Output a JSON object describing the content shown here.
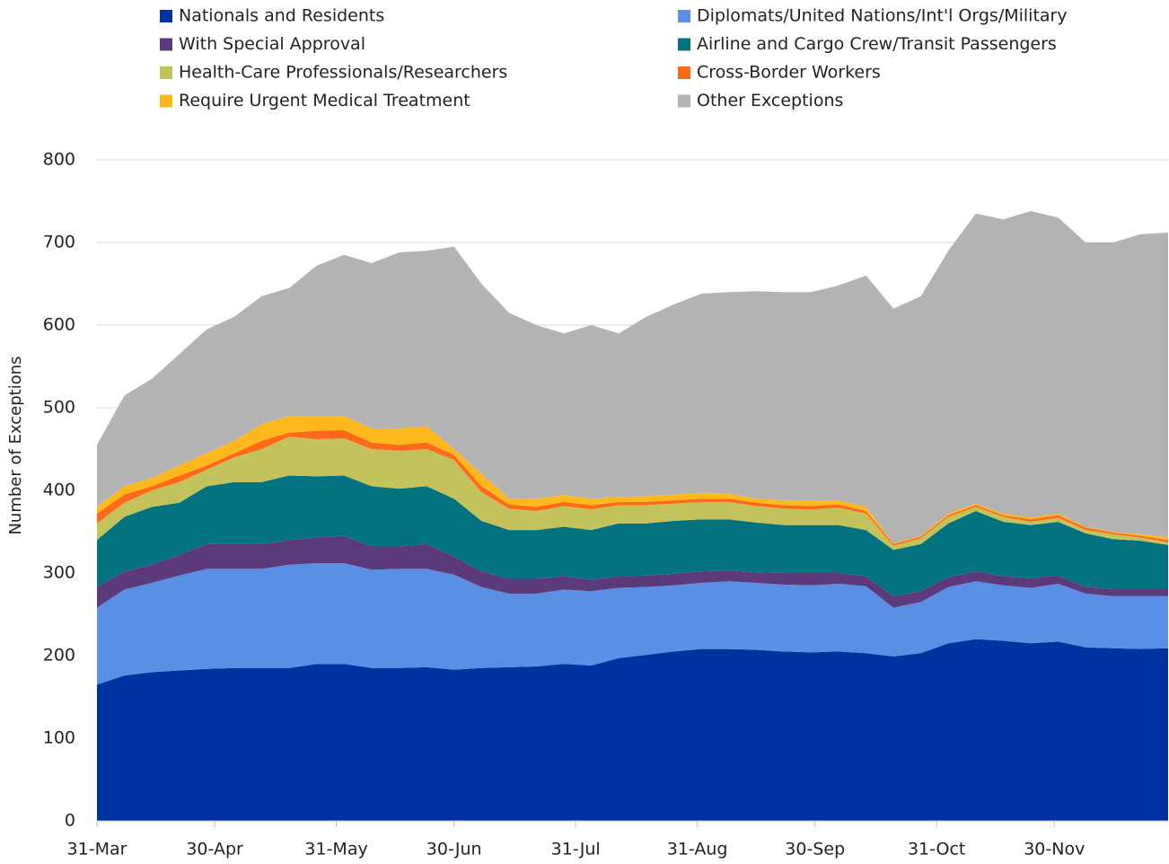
{
  "chart_data": {
    "type": "stacked_area",
    "y_label": "Number of Exceptions",
    "x": [
      0,
      7,
      14,
      21,
      28,
      35,
      42,
      49,
      56,
      63,
      70,
      77,
      84,
      91,
      98,
      105,
      112,
      119,
      126,
      133,
      140,
      147,
      154,
      161,
      168,
      175,
      182,
      189,
      196,
      203,
      210,
      217,
      224,
      231,
      238,
      245,
      252,
      259,
      266,
      273
    ],
    "xlim": [
      0,
      273
    ],
    "xticks": [
      {
        "value": 0,
        "label": "31-Mar"
      },
      {
        "value": 30,
        "label": "30-Apr"
      },
      {
        "value": 61,
        "label": "31-May"
      },
      {
        "value": 91,
        "label": "30-Jun"
      },
      {
        "value": 122,
        "label": "31-Jul"
      },
      {
        "value": 153,
        "label": "31-Aug"
      },
      {
        "value": 183,
        "label": "30-Sep"
      },
      {
        "value": 214,
        "label": "31-Oct"
      },
      {
        "value": 244,
        "label": "30-Nov"
      }
    ],
    "ylim": [
      0,
      800
    ],
    "yticks": [
      0,
      100,
      200,
      300,
      400,
      500,
      600,
      700,
      800
    ],
    "grid": true,
    "legend": "top",
    "series": [
      {
        "name": "Nationals and Residents",
        "color": "#0033a0",
        "values": [
          165,
          176,
          180,
          182,
          184,
          185,
          185,
          185,
          190,
          190,
          185,
          185,
          186,
          183,
          185,
          186,
          187,
          190,
          188,
          197,
          201,
          205,
          208,
          208,
          207,
          205,
          204,
          205,
          203,
          199,
          203,
          215,
          220,
          218,
          215,
          217,
          210,
          209,
          208,
          209
        ]
      },
      {
        "name": "Diplomats/United Nations/Int'l Orgs/Military",
        "color": "#5b8fe6",
        "values": [
          93,
          104,
          108,
          115,
          121,
          120,
          120,
          125,
          122,
          122,
          119,
          120,
          119,
          115,
          98,
          89,
          88,
          90,
          90,
          85,
          82,
          80,
          80,
          82,
          81,
          81,
          81,
          82,
          81,
          59,
          62,
          68,
          70,
          67,
          67,
          70,
          65,
          63,
          64,
          63
        ]
      },
      {
        "name": "With Special Approval",
        "color": "#5c3a7a",
        "values": [
          25,
          22,
          22,
          25,
          30,
          30,
          30,
          30,
          31,
          33,
          28,
          27,
          30,
          22,
          19,
          18,
          18,
          16,
          14,
          14,
          14,
          14,
          14,
          13,
          13,
          14,
          15,
          13,
          12,
          14,
          13,
          12,
          12,
          11,
          12,
          10,
          8,
          9,
          9,
          9
        ]
      },
      {
        "name": "Airline and Cargo Crew/Transit Passengers",
        "color": "#00737f",
        "values": [
          57,
          66,
          70,
          63,
          70,
          75,
          75,
          78,
          74,
          73,
          73,
          70,
          70,
          70,
          61,
          59,
          59,
          60,
          60,
          64,
          63,
          64,
          63,
          62,
          60,
          58,
          58,
          58,
          56,
          56,
          57,
          65,
          73,
          66,
          64,
          65,
          65,
          60,
          58,
          53
        ]
      },
      {
        "name": "Health-Care Professionals/Researchers",
        "color": "#c4c25a",
        "values": [
          20,
          17,
          20,
          25,
          20,
          30,
          40,
          47,
          45,
          45,
          45,
          46,
          45,
          47,
          35,
          26,
          23,
          25,
          25,
          22,
          22,
          21,
          21,
          21,
          20,
          20,
          19,
          21,
          20,
          5,
          7,
          8,
          5,
          6,
          4,
          5,
          4,
          6,
          4,
          3
        ]
      },
      {
        "name": "Cross-Border Workers",
        "color": "#ff6a1a",
        "values": [
          12,
          10,
          5,
          8,
          5,
          5,
          10,
          5,
          10,
          10,
          8,
          7,
          8,
          6,
          7,
          5,
          5,
          5,
          5,
          4,
          4,
          4,
          4,
          4,
          4,
          4,
          4,
          4,
          3,
          2,
          2,
          2,
          2,
          2,
          3,
          3,
          3,
          2,
          2,
          3
        ]
      },
      {
        "name": "Require Urgent Medical Treatment",
        "color": "#ffb81c",
        "values": [
          8,
          10,
          10,
          12,
          15,
          15,
          20,
          20,
          18,
          17,
          17,
          20,
          20,
          7,
          15,
          7,
          10,
          8,
          8,
          6,
          7,
          7,
          7,
          6,
          5,
          6,
          6,
          5,
          5,
          1,
          1,
          2,
          2,
          2,
          2,
          2,
          1,
          1,
          2,
          3
        ]
      },
      {
        "name": "Other Exceptions",
        "color": "#b3b3b3",
        "values": [
          75,
          110,
          120,
          135,
          150,
          150,
          155,
          155,
          182,
          195,
          200,
          213,
          212,
          245,
          230,
          225,
          210,
          196,
          210,
          198,
          217,
          230,
          241,
          244,
          251,
          252,
          253,
          260,
          280,
          284,
          290,
          318,
          351,
          356,
          371,
          358,
          344,
          350,
          363,
          369
        ]
      }
    ]
  }
}
